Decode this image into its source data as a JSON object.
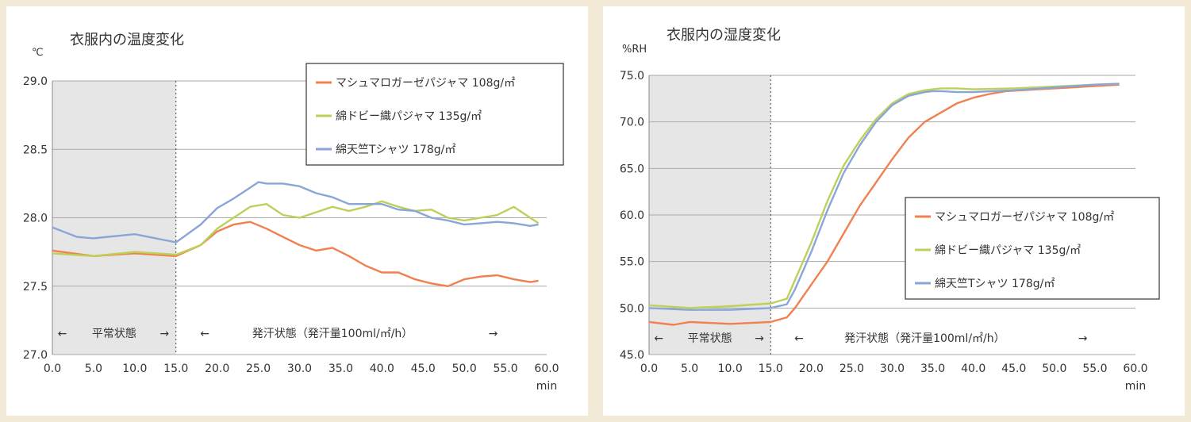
{
  "colors": {
    "background": "#f2ead6",
    "series_marshmallow": "#f08050",
    "series_dobby": "#bdd15a",
    "series_tenjiku": "#8aa6d8",
    "normal_zone": "#e6e6e6",
    "grid": "#aaaaaa"
  },
  "chart_data": [
    {
      "type": "line",
      "title": "衣服内の温度変化",
      "unit_label": "℃",
      "xlabel": "min",
      "xlim": [
        0,
        60
      ],
      "ylim": [
        27.0,
        29.0
      ],
      "x_ticks": [
        "0.0",
        "5.0",
        "10.0",
        "15.0",
        "20.0",
        "25.0",
        "30.0",
        "35.0",
        "40.0",
        "45.0",
        "50.0",
        "55.0",
        "60.0"
      ],
      "y_ticks": [
        "27.0",
        "27.5",
        "28.0",
        "28.5",
        "29.0"
      ],
      "normal_zone": [
        0,
        15
      ],
      "annotation_normal": [
        "←",
        "平常状態",
        "→"
      ],
      "annotation_sweat": [
        "←",
        "発汗状態（発汗量100ml/㎡/h）",
        "→"
      ],
      "legend_position": "top-right",
      "series": [
        {
          "name": "マシュマロガーゼパジャマ 108g/㎡",
          "color": "#f08050",
          "x": [
            0,
            5,
            10,
            15,
            18,
            20,
            22,
            24,
            26,
            28,
            30,
            32,
            34,
            36,
            38,
            40,
            42,
            44,
            46,
            48,
            50,
            52,
            54,
            56,
            58,
            59
          ],
          "y": [
            27.76,
            27.72,
            27.74,
            27.72,
            27.8,
            27.9,
            27.95,
            27.97,
            27.92,
            27.86,
            27.8,
            27.76,
            27.78,
            27.72,
            27.65,
            27.6,
            27.6,
            27.55,
            27.52,
            27.5,
            27.55,
            27.57,
            27.58,
            27.55,
            27.53,
            27.54
          ]
        },
        {
          "name": "綿ドビー織パジャマ 135g/㎡",
          "color": "#bdd15a",
          "x": [
            0,
            5,
            10,
            15,
            18,
            20,
            22,
            24,
            26,
            28,
            30,
            32,
            34,
            36,
            38,
            40,
            42,
            44,
            46,
            48,
            50,
            52,
            54,
            56,
            58,
            59
          ],
          "y": [
            27.74,
            27.72,
            27.75,
            27.73,
            27.8,
            27.92,
            28.0,
            28.08,
            28.1,
            28.02,
            28.0,
            28.04,
            28.08,
            28.05,
            28.08,
            28.12,
            28.08,
            28.05,
            28.06,
            28.0,
            27.98,
            28.0,
            28.02,
            28.08,
            28.0,
            27.96
          ]
        },
        {
          "name": "綿天竺Tシャツ 178g/㎡",
          "color": "#8aa6d8",
          "x": [
            0,
            3,
            5,
            10,
            15,
            18,
            20,
            22,
            24,
            25,
            26,
            28,
            30,
            32,
            34,
            36,
            38,
            40,
            42,
            44,
            46,
            48,
            50,
            52,
            54,
            56,
            58,
            59
          ],
          "y": [
            27.93,
            27.86,
            27.85,
            27.88,
            27.82,
            27.95,
            28.07,
            28.14,
            28.22,
            28.26,
            28.25,
            28.25,
            28.23,
            28.18,
            28.15,
            28.1,
            28.1,
            28.1,
            28.06,
            28.05,
            28.0,
            27.98,
            27.95,
            27.96,
            27.97,
            27.96,
            27.94,
            27.95
          ]
        }
      ]
    },
    {
      "type": "line",
      "title": "衣服内の湿度変化",
      "unit_label": "%RH",
      "xlabel": "min",
      "xlim": [
        0,
        60
      ],
      "ylim": [
        45.0,
        75.0
      ],
      "x_ticks": [
        "0.0",
        "5.0",
        "10.0",
        "15.0",
        "20.0",
        "25.0",
        "30.0",
        "35.0",
        "40.0",
        "45.0",
        "50.0",
        "55.0",
        "60.0"
      ],
      "y_ticks": [
        "45.0",
        "50.0",
        "55.0",
        "60.0",
        "65.0",
        "70.0",
        "75.0"
      ],
      "normal_zone": [
        0,
        15
      ],
      "annotation_normal": [
        "←",
        "平常状態",
        "→"
      ],
      "annotation_sweat": [
        "←",
        "発汗状態（発汗量100ml/㎡/h）",
        "→"
      ],
      "legend_position": "bottom-right",
      "series": [
        {
          "name": "マシュマロガーゼパジャマ 108g/㎡",
          "color": "#f08050",
          "x": [
            0,
            3,
            5,
            10,
            15,
            17,
            18,
            20,
            22,
            24,
            26,
            28,
            30,
            32,
            34,
            36,
            38,
            40,
            42,
            44,
            46,
            48,
            50,
            52,
            54,
            56,
            58
          ],
          "y": [
            48.5,
            48.2,
            48.5,
            48.3,
            48.5,
            49.0,
            50.0,
            52.5,
            55.0,
            58.0,
            61.0,
            63.5,
            66.0,
            68.3,
            70.0,
            71.0,
            72.0,
            72.6,
            73.0,
            73.3,
            73.4,
            73.5,
            73.6,
            73.7,
            73.8,
            73.9,
            74.0
          ]
        },
        {
          "name": "綿ドビー織パジャマ 135g/㎡",
          "color": "#bdd15a",
          "x": [
            0,
            5,
            10,
            15,
            17,
            18,
            20,
            22,
            24,
            26,
            28,
            30,
            32,
            34,
            35,
            36,
            38,
            40,
            45,
            50,
            55,
            58
          ],
          "y": [
            50.3,
            50.0,
            50.2,
            50.5,
            51.0,
            53.0,
            57.0,
            61.5,
            65.3,
            68.0,
            70.3,
            72.0,
            73.0,
            73.4,
            73.5,
            73.6,
            73.6,
            73.5,
            73.6,
            73.8,
            74.0,
            74.1
          ]
        },
        {
          "name": "綿天竺Tシャツ 178g/㎡",
          "color": "#8aa6d8",
          "x": [
            0,
            5,
            10,
            15,
            17,
            18,
            20,
            22,
            24,
            26,
            28,
            30,
            32,
            34,
            35,
            36,
            38,
            40,
            45,
            50,
            55,
            58
          ],
          "y": [
            50.0,
            49.8,
            49.8,
            50.0,
            50.4,
            52.0,
            56.0,
            60.5,
            64.5,
            67.5,
            70.0,
            71.8,
            72.8,
            73.2,
            73.3,
            73.3,
            73.2,
            73.2,
            73.4,
            73.7,
            74.0,
            74.1
          ]
        }
      ]
    }
  ]
}
